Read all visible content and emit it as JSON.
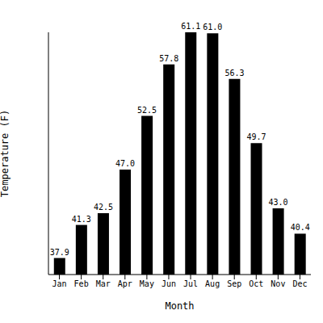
{
  "chart_data": {
    "type": "bar",
    "categories": [
      "Jan",
      "Feb",
      "Mar",
      "Apr",
      "May",
      "Jun",
      "Jul",
      "Aug",
      "Sep",
      "Oct",
      "Nov",
      "Dec"
    ],
    "values": [
      37.9,
      41.3,
      42.5,
      47.0,
      52.5,
      57.8,
      61.1,
      61.0,
      56.3,
      49.7,
      43.0,
      40.4
    ],
    "value_labels": [
      "37.9",
      "41.3",
      "42.5",
      "47.0",
      "52.5",
      "57.8",
      "61.1",
      "61.0",
      "56.3",
      "49.7",
      "43.0",
      "40.4"
    ],
    "color": "#000000",
    "xlabel": "Month",
    "ylabel": "Temperature (F)",
    "ylim": [
      36.2,
      61.1
    ],
    "data_labels": true,
    "tick_labels": "x"
  }
}
